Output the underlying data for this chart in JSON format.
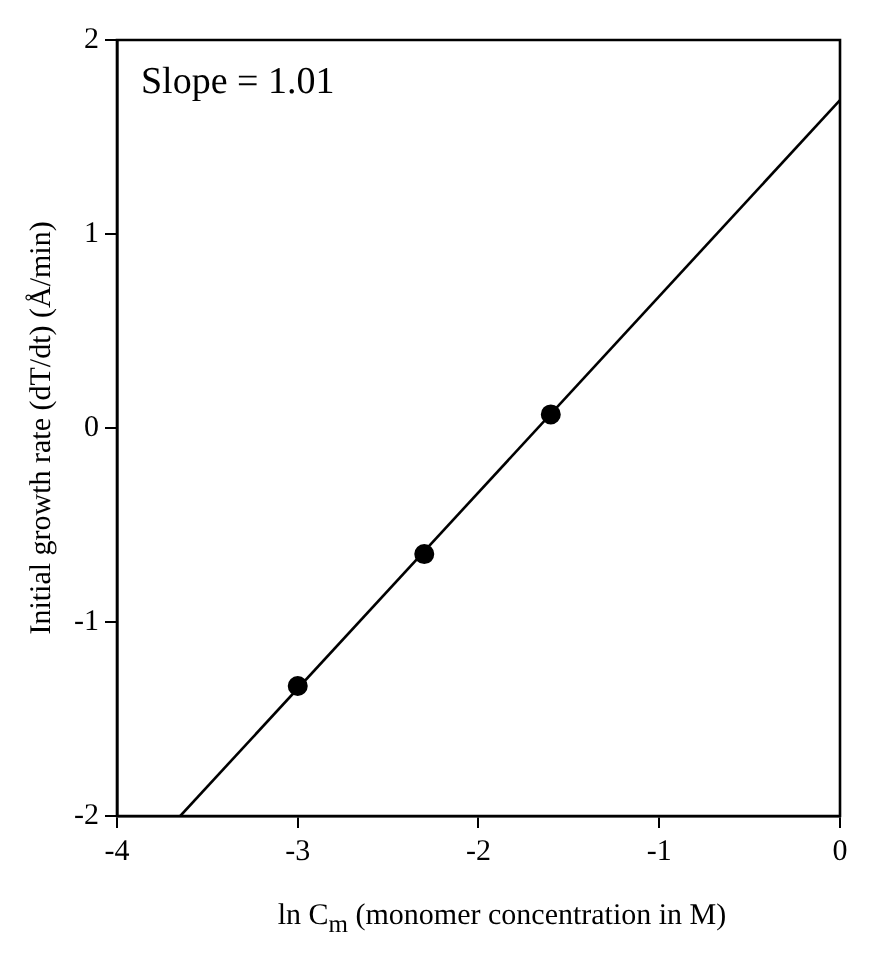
{
  "chart_data": {
    "type": "scatter",
    "xlabel": "ln C$_{m}$ (monomer concentration in M)",
    "ylabel": "Initial growth rate (dT/dt) (Å/min)",
    "annotations": [
      "Slope = 1.01"
    ],
    "xlim": [
      -4,
      0
    ],
    "xticks": [
      -4,
      -3,
      -2,
      -1,
      0
    ],
    "ylim": [
      -2,
      2
    ],
    "yticks": [
      -2,
      -1,
      0,
      1,
      2
    ],
    "grid": false,
    "legend": false,
    "marker": "circle",
    "series": [
      {
        "color": "#000000",
        "x": [
          -3,
          -2.3,
          -1.6
        ],
        "values": [
          -1.33,
          -0.65,
          0.07
        ]
      },
      {
        "type": "line",
        "color": "#000000",
        "marker": "none",
        "x": [
          -3.65,
          0
        ],
        "values": [
          -2,
          1.69
        ]
      }
    ]
  }
}
